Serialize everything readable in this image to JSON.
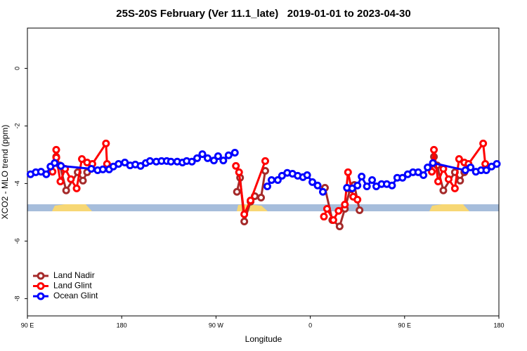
{
  "chart_data": {
    "type": "line",
    "title": "25S-20S February (Ver 11.1_late)   2019-01-01 to 2023-04-30",
    "xlabel": "Longitude",
    "ylabel": "XCO2 - MLO trend (ppm)",
    "xlim": [
      90,
      540
    ],
    "ylim": [
      -8.6,
      1.4
    ],
    "xticks": [
      {
        "value": 90,
        "label": "90 E"
      },
      {
        "value": 180,
        "label": "180"
      },
      {
        "value": 270,
        "label": "90 W"
      },
      {
        "value": 360,
        "label": "0"
      },
      {
        "value": 450,
        "label": "90 E"
      },
      {
        "value": 540,
        "label": "180"
      }
    ],
    "yticks": [
      0,
      -2,
      -4,
      -6,
      -8
    ],
    "legend": "bottom-left",
    "series": [
      {
        "name": "Land Nadir",
        "color": "#a52a2a",
        "x": [
          117.5,
          121,
          127,
          138,
          143,
          147,
          null,
          290,
          293,
          297,
          303,
          307,
          313,
          317,
          null,
          374,
          381,
          388,
          393,
          398,
          402,
          407,
          null,
          478,
          481,
          487,
          498,
          503,
          507
        ],
        "values": [
          -3.07,
          -3.37,
          -4.24,
          -3.61,
          -3.9,
          -3.61,
          null,
          -4.29,
          -3.8,
          -5.32,
          -4.63,
          -4.44,
          -4.49,
          -3.56,
          null,
          -4.15,
          -5.27,
          -5.49,
          -4.88,
          -4.2,
          -4.05,
          -4.93,
          null,
          -3.07,
          -3.37,
          -4.24,
          -3.61,
          -3.9,
          -3.61
        ]
      },
      {
        "name": "Land Glint",
        "color": "#ff0000",
        "x": [
          114,
          117.5,
          117.6,
          121.5,
          126,
          131.5,
          137,
          142,
          147,
          152,
          165,
          166,
          null,
          289,
          292,
          297,
          303,
          317,
          null,
          373,
          376,
          382,
          387,
          393,
          396,
          401,
          405,
          null,
          476,
          478,
          482,
          487,
          492,
          498,
          502,
          507,
          511,
          525,
          527
        ],
        "values": [
          -3.59,
          -2.83,
          -3.1,
          -3.93,
          -3.49,
          -3.85,
          -4.17,
          -3.15,
          -3.27,
          -3.32,
          -2.61,
          -3.32,
          null,
          -3.39,
          -3.61,
          -5.07,
          -4.59,
          -3.22,
          null,
          -5.15,
          -4.88,
          -5.27,
          -4.95,
          -4.73,
          -3.61,
          -4.46,
          -4.56,
          null,
          -3.59,
          -2.83,
          -3.93,
          -3.49,
          -3.85,
          -4.17,
          -3.15,
          -3.27,
          -3.32,
          -2.61,
          -3.32
        ]
      },
      {
        "name": "Ocean Glint",
        "color": "#0000ff",
        "x": [
          93,
          98,
          103,
          108,
          112,
          116,
          122,
          151,
          157,
          162,
          168,
          172,
          177,
          183,
          188,
          193,
          198,
          203,
          207,
          213,
          218,
          223,
          227,
          233,
          238,
          242,
          247,
          252,
          257,
          262,
          268,
          272,
          277,
          282,
          288,
          null,
          319,
          323,
          329,
          333,
          338,
          343,
          348,
          353,
          357,
          362,
          367,
          372,
          null,
          395,
          400,
          405,
          409,
          414,
          419,
          423,
          428,
          433,
          438,
          443,
          448,
          453,
          458,
          463,
          468,
          472,
          477,
          508,
          513,
          518,
          523,
          528,
          533,
          538
        ],
        "values": [
          -3.68,
          -3.61,
          -3.59,
          -3.68,
          -3.41,
          -3.29,
          -3.39,
          -3.49,
          -3.54,
          -3.51,
          -3.51,
          -3.41,
          -3.32,
          -3.27,
          -3.37,
          -3.34,
          -3.39,
          -3.29,
          -3.22,
          -3.24,
          -3.22,
          -3.22,
          -3.24,
          -3.24,
          -3.27,
          -3.22,
          -3.24,
          -3.12,
          -2.98,
          -3.12,
          -3.2,
          -3.05,
          -3.2,
          -3.02,
          -2.93,
          null,
          -4.1,
          -3.88,
          -3.88,
          -3.73,
          -3.63,
          -3.66,
          -3.73,
          -3.78,
          -3.71,
          -3.95,
          -4.07,
          -4.29,
          null,
          -4.15,
          -4.17,
          -4.07,
          -3.76,
          -4.1,
          -3.88,
          -4.1,
          -4.02,
          -4.02,
          -4.07,
          -3.8,
          -3.8,
          -3.68,
          -3.61,
          -3.61,
          -3.71,
          -3.44,
          -3.29,
          -3.54,
          -3.44,
          -3.59,
          -3.54,
          -3.54,
          -3.41,
          -3.32
        ]
      }
    ]
  }
}
